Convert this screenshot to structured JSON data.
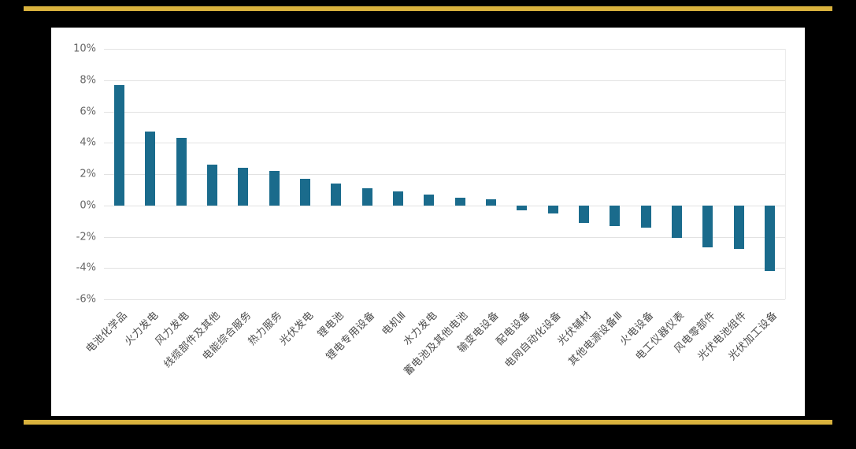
{
  "page": {
    "background_color": "#000000",
    "accent_bar_color": "#d9b23d",
    "panel_color": "#ffffff"
  },
  "chart_data": {
    "type": "bar",
    "title": "",
    "xlabel": "",
    "ylabel": "",
    "categories": [
      "电池化学品",
      "火力发电",
      "风力发电",
      "线缆部件及其他",
      "电能综合服务",
      "热力服务",
      "光伏发电",
      "锂电池",
      "锂电专用设备",
      "电机Ⅲ",
      "水力发电",
      "蓄电池及其他电池",
      "输变电设备",
      "配电设备",
      "电网自动化设备",
      "光伏辅材",
      "其他电源设备Ⅲ",
      "火电设备",
      "电工仪器仪表",
      "风电零部件",
      "光伏电池组件",
      "光伏加工设备"
    ],
    "values": [
      7.7,
      4.7,
      4.3,
      2.6,
      2.4,
      2.2,
      1.7,
      1.4,
      1.1,
      0.9,
      0.7,
      0.5,
      0.4,
      -0.3,
      -0.5,
      -1.1,
      -1.3,
      -1.4,
      -2.1,
      -2.7,
      -2.8,
      -4.2
    ],
    "value_suffix": "%",
    "ylim": [
      -6,
      10
    ],
    "yticks": [
      10,
      8,
      6,
      4,
      2,
      0,
      -2,
      -4,
      -6
    ],
    "ytick_suffix": "%",
    "grid": true,
    "legend": "none",
    "bar_color": "#1a6b8c",
    "gridline_color": "#e2e2e2",
    "ytick_label_color": "#666666",
    "xtick_label_color": "#4d4d4d"
  }
}
